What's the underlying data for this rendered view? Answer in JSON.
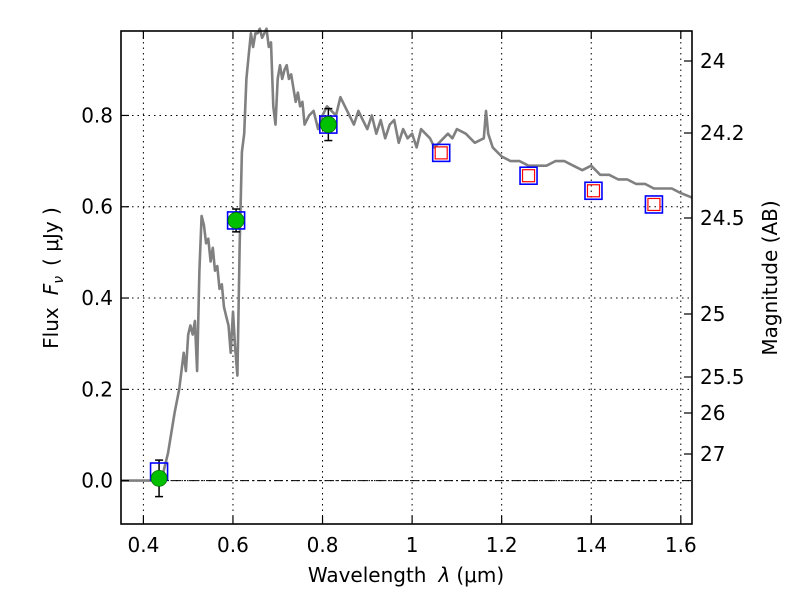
{
  "chart_data": {
    "type": "scatter",
    "xlabel": "Wavelength",
    "xlabel_symbol": "λ",
    "xlabel_unit": "(μm)",
    "ylabel": "Flux",
    "ylabel_symbol": "F",
    "ylabel_subscript": "ν",
    "ylabel_unit": "( μJy )",
    "y2label": "Magnitude (AB)",
    "xlim": [
      0.35,
      1.625
    ],
    "ylim": [
      -0.095,
      0.985
    ],
    "grid": true,
    "x_ticks": [
      {
        "value": 0.4,
        "label": "0.4"
      },
      {
        "value": 0.6,
        "label": "0.6"
      },
      {
        "value": 0.8,
        "label": "0.8"
      },
      {
        "value": 1.0,
        "label": "1"
      },
      {
        "value": 1.2,
        "label": "1.2"
      },
      {
        "value": 1.4,
        "label": "1.4"
      },
      {
        "value": 1.6,
        "label": "1.6"
      }
    ],
    "y_ticks": [
      {
        "value": 0.0,
        "label": "0.0"
      },
      {
        "value": 0.2,
        "label": "0.2"
      },
      {
        "value": 0.4,
        "label": "0.4"
      },
      {
        "value": 0.6,
        "label": "0.6"
      },
      {
        "value": 0.8,
        "label": "0.8"
      }
    ],
    "y2_ticks": [
      {
        "value": 24.0,
        "label": "24"
      },
      {
        "value": 24.2,
        "label": "24.2"
      },
      {
        "value": 24.5,
        "label": "24.5"
      },
      {
        "value": 25.0,
        "label": "25"
      },
      {
        "value": 25.5,
        "label": "25.5"
      },
      {
        "value": 26.0,
        "label": "26"
      },
      {
        "value": 27.0,
        "label": "27"
      }
    ],
    "model_spectrum": {
      "color": "#808080",
      "x": [
        0.35,
        0.44,
        0.455,
        0.47,
        0.48,
        0.49,
        0.495,
        0.5,
        0.505,
        0.51,
        0.515,
        0.52,
        0.525,
        0.53,
        0.535,
        0.54,
        0.545,
        0.55,
        0.555,
        0.56,
        0.565,
        0.57,
        0.575,
        0.58,
        0.585,
        0.59,
        0.595,
        0.6,
        0.605,
        0.61,
        0.615,
        0.62,
        0.625,
        0.63,
        0.635,
        0.64,
        0.645,
        0.65,
        0.655,
        0.66,
        0.665,
        0.67,
        0.675,
        0.68,
        0.685,
        0.69,
        0.695,
        0.7,
        0.705,
        0.71,
        0.715,
        0.72,
        0.725,
        0.73,
        0.735,
        0.74,
        0.745,
        0.75,
        0.755,
        0.76,
        0.77,
        0.78,
        0.79,
        0.8,
        0.81,
        0.82,
        0.83,
        0.84,
        0.85,
        0.86,
        0.87,
        0.88,
        0.89,
        0.9,
        0.91,
        0.92,
        0.93,
        0.94,
        0.95,
        0.96,
        0.97,
        0.98,
        0.99,
        1.0,
        1.01,
        1.02,
        1.03,
        1.04,
        1.05,
        1.06,
        1.07,
        1.08,
        1.09,
        1.1,
        1.12,
        1.14,
        1.16,
        1.165,
        1.17,
        1.18,
        1.2,
        1.22,
        1.24,
        1.26,
        1.28,
        1.3,
        1.32,
        1.34,
        1.36,
        1.38,
        1.4,
        1.42,
        1.44,
        1.46,
        1.48,
        1.5,
        1.52,
        1.54,
        1.56,
        1.58,
        1.6,
        1.625
      ],
      "y": [
        0.0,
        0.0,
        0.06,
        0.15,
        0.2,
        0.28,
        0.24,
        0.32,
        0.34,
        0.32,
        0.35,
        0.24,
        0.46,
        0.58,
        0.56,
        0.52,
        0.53,
        0.48,
        0.51,
        0.46,
        0.47,
        0.42,
        0.43,
        0.38,
        0.36,
        0.34,
        0.28,
        0.37,
        0.29,
        0.23,
        0.52,
        0.72,
        0.76,
        0.88,
        0.93,
        0.98,
        0.95,
        0.98,
        0.98,
        0.99,
        0.97,
        0.98,
        0.99,
        0.95,
        0.96,
        0.82,
        0.78,
        0.88,
        0.91,
        0.88,
        0.9,
        0.91,
        0.88,
        0.89,
        0.86,
        0.83,
        0.85,
        0.82,
        0.83,
        0.78,
        0.8,
        0.81,
        0.77,
        0.8,
        0.82,
        0.81,
        0.8,
        0.84,
        0.82,
        0.8,
        0.78,
        0.81,
        0.79,
        0.77,
        0.8,
        0.76,
        0.79,
        0.75,
        0.78,
        0.79,
        0.74,
        0.77,
        0.75,
        0.76,
        0.73,
        0.77,
        0.76,
        0.75,
        0.73,
        0.74,
        0.75,
        0.76,
        0.75,
        0.77,
        0.76,
        0.74,
        0.75,
        0.81,
        0.76,
        0.73,
        0.71,
        0.7,
        0.7,
        0.69,
        0.69,
        0.69,
        0.7,
        0.7,
        0.69,
        0.68,
        0.69,
        0.67,
        0.67,
        0.66,
        0.66,
        0.65,
        0.65,
        0.64,
        0.64,
        0.64,
        0.63,
        0.62
      ]
    },
    "model_photometry": {
      "marker": "square",
      "edge_color": "#0000ff",
      "x": [
        0.435,
        0.607,
        0.813,
        1.065,
        1.26,
        1.405,
        1.54
      ],
      "y": [
        0.02,
        0.57,
        0.78,
        0.718,
        0.668,
        0.635,
        0.605
      ]
    },
    "observed_fluxes": {
      "marker": "circle",
      "color": "#00c000",
      "x": [
        0.435,
        0.607,
        0.813
      ],
      "y": [
        0.005,
        0.57,
        0.78
      ],
      "yerr": [
        0.04,
        0.025,
        0.035
      ]
    },
    "upper_limits": {
      "marker": "square",
      "color": "#ff0000",
      "x": [
        1.065,
        1.26,
        1.405,
        1.54
      ],
      "y": [
        0.718,
        0.668,
        0.635,
        0.605
      ]
    }
  }
}
